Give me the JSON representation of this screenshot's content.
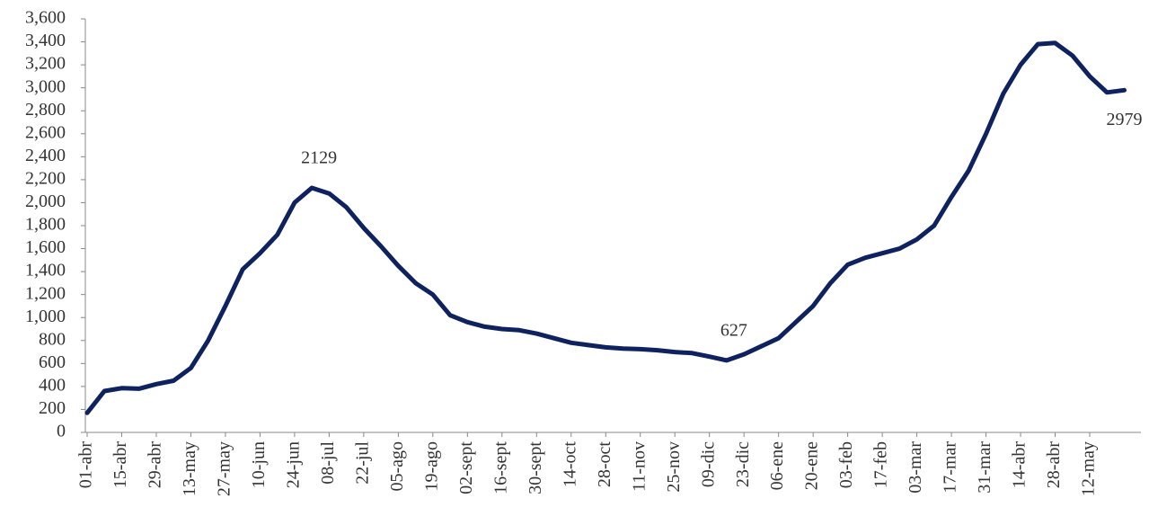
{
  "chart_data": {
    "type": "line",
    "categories": [
      "01-abr",
      null,
      "15-abr",
      null,
      "29-abr",
      null,
      "13-may",
      null,
      "27-may",
      null,
      "10-jun",
      null,
      "24-jun",
      null,
      "08-jul",
      null,
      "22-jul",
      null,
      "05-ago",
      null,
      "19-ago",
      null,
      "02-sept",
      null,
      "16-sept",
      null,
      "30-sept",
      null,
      "14-oct",
      null,
      "28-oct",
      null,
      "11-nov",
      null,
      "25-nov",
      null,
      "09-dic",
      null,
      "23-dic",
      null,
      "06-ene",
      null,
      "20-ene",
      null,
      "03-feb",
      null,
      "17-feb",
      null,
      "03-mar",
      null,
      "17-mar",
      null,
      "31-mar",
      null,
      "14-abr",
      null,
      "28-abr",
      null,
      "12-may",
      null,
      null
    ],
    "values": [
      170,
      360,
      385,
      380,
      420,
      450,
      560,
      800,
      1100,
      1420,
      1560,
      1720,
      2000,
      2129,
      2080,
      1960,
      1780,
      1620,
      1450,
      1300,
      1200,
      1020,
      960,
      920,
      900,
      890,
      860,
      820,
      780,
      760,
      740,
      730,
      725,
      715,
      700,
      690,
      660,
      627,
      680,
      750,
      820,
      960,
      1100,
      1300,
      1460,
      1520,
      1560,
      1600,
      1680,
      1800,
      2050,
      2280,
      2600,
      2950,
      3200,
      3380,
      3390,
      3280,
      3100,
      2960,
      2979
    ],
    "value_labels": [
      null,
      null,
      null,
      null,
      null,
      null,
      null,
      null,
      null,
      null,
      null,
      null,
      null,
      "2129",
      null,
      null,
      null,
      null,
      null,
      null,
      null,
      null,
      null,
      null,
      null,
      null,
      null,
      null,
      null,
      null,
      null,
      null,
      null,
      null,
      null,
      null,
      null,
      "627",
      null,
      null,
      null,
      null,
      null,
      null,
      null,
      null,
      null,
      null,
      null,
      null,
      null,
      null,
      null,
      null,
      null,
      null,
      null,
      null,
      null,
      null,
      "2979"
    ],
    "color": "#0f2260",
    "ylim": [
      0,
      3600
    ],
    "yticks": [
      0,
      200,
      400,
      600,
      800,
      {
        "value": 1000,
        "label": "1,000"
      },
      {
        "value": 1200,
        "label": "1,200"
      },
      {
        "value": 1400,
        "label": "1,400"
      },
      {
        "value": 1600,
        "label": "1,600"
      },
      {
        "value": 1800,
        "label": "1,800"
      },
      {
        "value": 2000,
        "label": "2,000"
      },
      {
        "value": 2200,
        "label": "2,200"
      },
      {
        "value": 2400,
        "label": "2,400"
      },
      {
        "value": 2600,
        "label": "2,600"
      },
      {
        "value": 2800,
        "label": "2,800"
      },
      {
        "value": 3000,
        "label": "3,000"
      },
      {
        "value": 3200,
        "label": "3,200"
      },
      {
        "value": 3400,
        "label": "3,400"
      },
      {
        "value": 3600,
        "label": "3,600"
      }
    ],
    "grid": false
  }
}
